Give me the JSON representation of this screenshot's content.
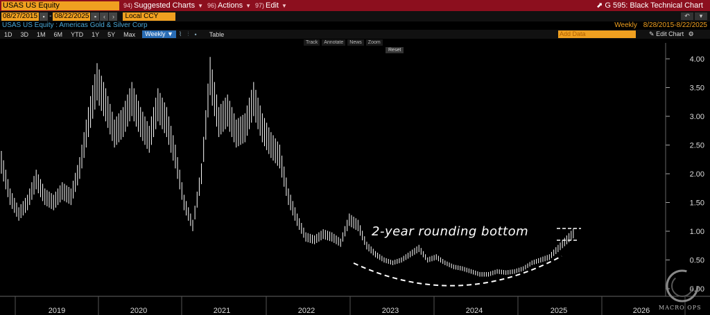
{
  "toolbar": {
    "ticker": "USAS US Equity",
    "menus": [
      {
        "num": "94)",
        "label": "Suggested Charts"
      },
      {
        "num": "96)",
        "label": "Actions"
      },
      {
        "num": "97)",
        "label": "Edit"
      }
    ],
    "chart_title": "G 595: Black Technical Chart"
  },
  "range": {
    "start": "08/27/2015",
    "end": "08/22/2025",
    "currency": "Local CCY"
  },
  "security": {
    "name": "USAS US Equity : Americas Gold & Silver Corp",
    "frequency": "Weekly",
    "period": "8/28/2015-8/22/2025"
  },
  "periods": [
    "1D",
    "3D",
    "1M",
    "6M",
    "YTD",
    "1Y",
    "5Y",
    "Max"
  ],
  "selected_frequency": "Weekly ▼",
  "table_label": "Table",
  "add_data_placeholder": "Add Data",
  "edit_chart_label": "Edit Chart",
  "tools": [
    "Track",
    "Annotate",
    "News",
    "Zoom"
  ],
  "reset_label": "Reset",
  "annotation": "2-year rounding bottom",
  "watermark": "MACRO OPS",
  "colors": {
    "accent": "#f0a020",
    "topbar": "#8c0f1e",
    "price": "#ffffff",
    "secname": "#4aa8d8"
  },
  "chart_data": {
    "type": "line",
    "title": "",
    "xlabel": "",
    "ylabel": "",
    "x_labels": [
      "2019",
      "2020",
      "2021",
      "2022",
      "2023",
      "2024",
      "2025",
      "2026"
    ],
    "y_ticks": [
      "0.00",
      "0.50",
      "1.00",
      "1.50",
      "2.00",
      "2.50",
      "3.00",
      "3.50",
      "4.00"
    ],
    "ylim": [
      0,
      4.1
    ],
    "grid": false,
    "series": [
      {
        "values": [
          2.2,
          1.6,
          1.3,
          1.5,
          1.9,
          1.6,
          1.5,
          1.7,
          1.6,
          2.1,
          2.9,
          3.6,
          3.2,
          2.7,
          2.9,
          3.3,
          2.9,
          2.6,
          3.2,
          2.9,
          2.3,
          1.5,
          1.1,
          2.0,
          3.7,
          2.9,
          3.1,
          2.7,
          2.8,
          3.3,
          2.8,
          2.5,
          2.3,
          1.6,
          1.2,
          0.9,
          0.85,
          0.95,
          0.9,
          0.8,
          1.2,
          1.1,
          0.75,
          0.6,
          0.5,
          0.45,
          0.5,
          0.6,
          0.7,
          0.5,
          0.55,
          0.45,
          0.38,
          0.35,
          0.3,
          0.25,
          0.25,
          0.3,
          0.28,
          0.3,
          0.35,
          0.45,
          0.5,
          0.55,
          0.7,
          0.85,
          1.0
        ]
      }
    ]
  }
}
